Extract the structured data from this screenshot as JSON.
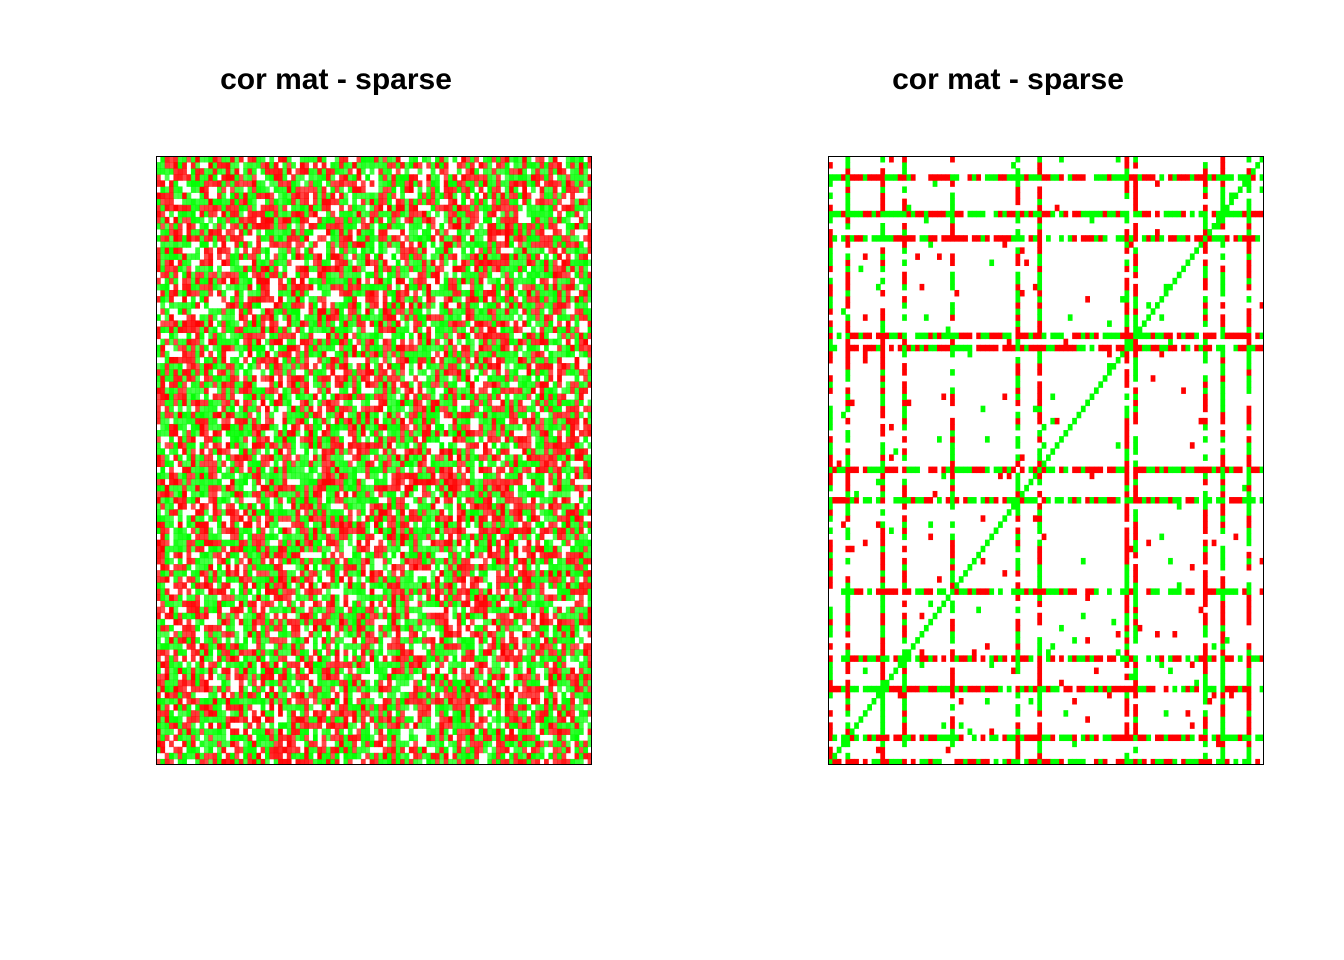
{
  "chart_data": [
    {
      "type": "heatmap",
      "title": "cor mat - sparse",
      "xlabel": "",
      "ylabel": "",
      "axes_shown": false,
      "grid": false,
      "legend": "none",
      "rows": 100,
      "cols": 100,
      "value_range": [
        -1,
        1
      ],
      "colors": {
        "positive": "#00ff00",
        "negative": "#ff0000",
        "zero": "#ffffff",
        "border": "#000000"
      },
      "pattern": "dense",
      "density": 0.8,
      "seed": 12345
    },
    {
      "type": "heatmap",
      "title": "cor mat - sparse",
      "xlabel": "",
      "ylabel": "",
      "axes_shown": false,
      "grid": false,
      "legend": "none",
      "rows": 100,
      "cols": 100,
      "value_range": [
        -1,
        1
      ],
      "colors": {
        "positive": "#00ff00",
        "negative": "#ff0000",
        "zero": "#ffffff",
        "border": "#000000"
      },
      "pattern": "sparse-banded",
      "diagonal": "positive",
      "band_indices": [
        0,
        4,
        12,
        17,
        28,
        43,
        48,
        68,
        70,
        86,
        90,
        96
      ],
      "density": 0.02,
      "seed": 98765
    }
  ]
}
